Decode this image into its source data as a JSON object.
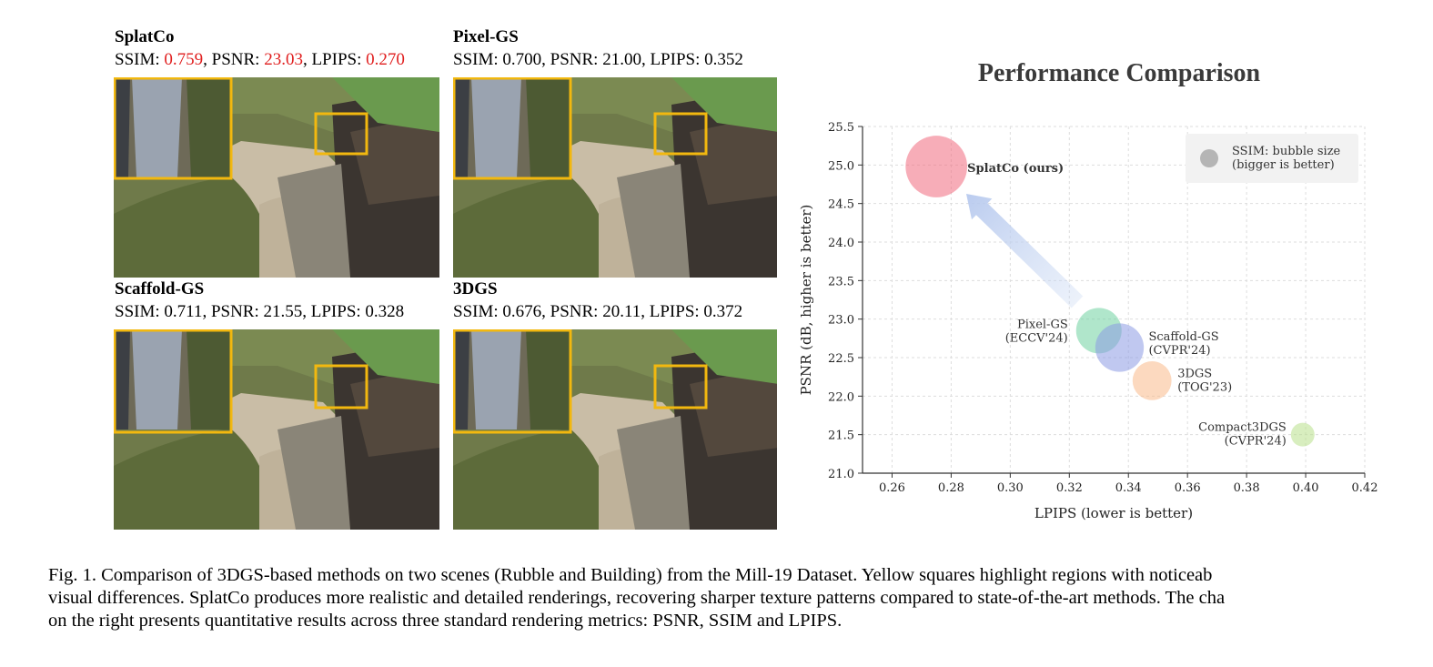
{
  "panels": [
    {
      "title": "SplatCo",
      "ssim": "0.759",
      "psnr": "23.03",
      "lpips": "0.270",
      "highlight": true
    },
    {
      "title": "Pixel-GS",
      "ssim": "0.700",
      "psnr": "21.00",
      "lpips": "0.352",
      "highlight": false
    },
    {
      "title": "Scaffold-GS",
      "ssim": "0.711",
      "psnr": "21.55",
      "lpips": "0.328",
      "highlight": false
    },
    {
      "title": "3DGS",
      "ssim": "0.676",
      "psnr": "20.11",
      "lpips": "0.372",
      "highlight": false
    }
  ],
  "labels": {
    "ssim": "SSIM: ",
    "psnr": ", PSNR: ",
    "lpips": ", LPIPS: "
  },
  "chart_data": {
    "type": "scatter",
    "title": "Performance Comparison",
    "xlabel": "LPIPS (lower is better)",
    "ylabel": "PSNR (dB, higher is better)",
    "xlim": [
      0.25,
      0.42
    ],
    "ylim": [
      21.0,
      25.5
    ],
    "xticks": [
      "0.26",
      "0.28",
      "0.30",
      "0.32",
      "0.34",
      "0.36",
      "0.38",
      "0.40",
      "0.42"
    ],
    "yticks": [
      "21.0",
      "21.5",
      "22.0",
      "22.5",
      "23.0",
      "23.5",
      "24.0",
      "24.5",
      "25.0",
      "25.5"
    ],
    "grid": true,
    "legend_text": [
      "SSIM: bubble size",
      "(bigger is better)"
    ],
    "legend_placement": "top-right",
    "points": [
      {
        "label": [
          "SplatCo (ours)"
        ],
        "x": 0.275,
        "y": 24.98,
        "ssim": 0.759,
        "color": "#f06a7e",
        "bold": true
      },
      {
        "label": [
          "Pixel-GS",
          "(ECCV'24)"
        ],
        "x": 0.33,
        "y": 22.85,
        "ssim": 0.7,
        "color": "#6fd1a0",
        "bold": false
      },
      {
        "label": [
          "Scaffold-GS",
          "(CVPR'24)"
        ],
        "x": 0.337,
        "y": 22.63,
        "ssim": 0.711,
        "color": "#8c9be3",
        "bold": false
      },
      {
        "label": [
          "3DGS",
          "(TOG'23)"
        ],
        "x": 0.348,
        "y": 22.2,
        "ssim": 0.676,
        "color": "#f9b98b",
        "bold": false
      },
      {
        "label": [
          "Compact3DGS",
          "(CVPR'24)"
        ],
        "x": 0.399,
        "y": 21.5,
        "ssim": 0.62,
        "color": "#b8e08a",
        "bold": false
      }
    ]
  },
  "caption": [
    "Fig. 1.  Comparison of 3DGS-based methods on two scenes (Rubble and Building) from the Mill-19 Dataset. Yellow squares highlight regions with noticeab",
    "visual differences. SplatCo produces more realistic and detailed renderings, recovering sharper texture patterns compared to state-of-the-art methods. The cha",
    "on the right presents quantitative results across three standard rendering metrics: PSNR, SSIM and LPIPS."
  ]
}
